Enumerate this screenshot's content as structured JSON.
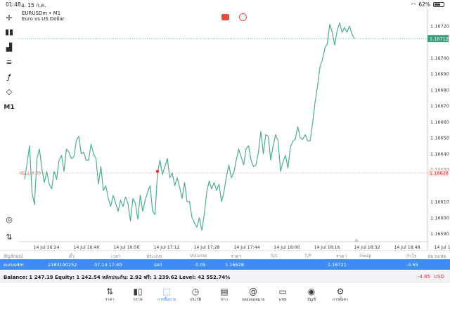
{
  "status_bar": {
    "time": "01:48",
    "date": "อ. 15 ก.ค.",
    "battery": "62%",
    "battery_level": 0.62
  },
  "toolbar": {
    "timeframe": "M1"
  },
  "chart_header": {
    "symbol": "EURUSDm • M1",
    "description": "Euro vs US Dollar"
  },
  "chart_data": {
    "type": "line",
    "y_ticks": [
      "1.16720",
      "1.16700",
      "1.16690",
      "1.16680",
      "1.16670",
      "1.16660",
      "1.16650",
      "1.16640",
      "1.16630",
      "1.16610",
      "1.16600",
      "1.16590"
    ],
    "x_ticks": [
      "14 Jul 16:24",
      "14 Jul 16:40",
      "14 Jul 16:56",
      "14 Jul 17:12",
      "14 Jul 17:28",
      "14 Jul 17:44",
      "14 Jul 18:00",
      "14 Jul 18:16",
      "14 Jul 18:32",
      "14 Jul 18:48",
      "14 Jul 19:04"
    ],
    "ylim": [
      1.16585,
      1.16727
    ],
    "current_price": "1.16712",
    "order_price_label": "1.16628",
    "order_line_label": "SELL 0.05",
    "series_color": "#4fae8a",
    "values": [
      1.16624,
      1.16634,
      1.16645,
      1.16616,
      1.16608,
      1.16637,
      1.16643,
      1.16631,
      1.16622,
      1.16629,
      1.16621,
      1.16618,
      1.16629,
      1.16624,
      1.16636,
      1.16639,
      1.16629,
      1.16643,
      1.16641,
      1.16637,
      1.16638,
      1.16648,
      1.16651,
      1.1664,
      1.16641,
      1.16636,
      1.16636,
      1.16646,
      1.1664,
      1.16637,
      1.16621,
      1.16632,
      1.16617,
      1.1662,
      1.16612,
      1.16607,
      1.16614,
      1.16609,
      1.16604,
      1.16611,
      1.16607,
      1.16613,
      1.16609,
      1.16598,
      1.16612,
      1.16609,
      1.16599,
      1.16614,
      1.16604,
      1.16611,
      1.16616,
      1.1662,
      1.16604,
      1.16602,
      1.16628,
      1.16636,
      1.16627,
      1.16632,
      1.16637,
      1.16625,
      1.16628,
      1.1662,
      1.16625,
      1.16619,
      1.16612,
      1.16622,
      1.1661,
      1.1661,
      1.166,
      1.16597,
      1.16594,
      1.166,
      1.16592,
      1.16602,
      1.16616,
      1.16623,
      1.16618,
      1.16622,
      1.16617,
      1.16621,
      1.1661,
      1.16616,
      1.16626,
      1.16633,
      1.16625,
      1.16628,
      1.16636,
      1.16643,
      1.16638,
      1.16633,
      1.16643,
      1.16645,
      1.16636,
      1.16632,
      1.16633,
      1.16641,
      1.16654,
      1.1664,
      1.16652,
      1.16651,
      1.16636,
      1.16645,
      1.16652,
      1.16648,
      1.16629,
      1.16635,
      1.16639,
      1.16631,
      1.16644,
      1.16648,
      1.16649,
      1.16657,
      1.1665,
      1.16649,
      1.16652,
      1.16648,
      1.16648,
      1.16659,
      1.16672,
      1.16682,
      1.16694,
      1.16699,
      1.16706,
      1.16709,
      1.16721,
      1.16716,
      1.16708,
      1.16717,
      1.16722,
      1.16716,
      1.16719,
      1.16716,
      1.1672,
      1.16715,
      1.16712
    ]
  },
  "orders": {
    "headers": {
      "symbol": "สัญลักษณ์",
      "ticket": "ตั๋ว",
      "time": "เวลา",
      "type": "ประเภท",
      "volume": "Volume",
      "price": "ราคา",
      "sl": "S/L",
      "tp": "T/P",
      "price2": "ราคา",
      "swap": "Swap",
      "profit": "กำไร",
      "comment": "หมายเหตุ"
    },
    "row": {
      "symbol": "eurusdm",
      "ticket": "2183190252",
      "time": "07.14 17:49",
      "type": "sell",
      "volume": "0.05",
      "price": "1.16628",
      "price2": "1.16721",
      "profit": "-4.65"
    }
  },
  "balance": {
    "text": "Balance: 1 247.19 Equity: 1 242.54 หลักประกัน: 2.92 ฟรี: 1 239.62 Level: 42 552.74%",
    "profit": "-4.65",
    "currency": "USD"
  },
  "tabs": [
    {
      "label": "ราคา",
      "icon": "quotes-icon"
    },
    {
      "label": "กราฟ",
      "icon": "candles-icon"
    },
    {
      "label": "การซื้อขาย",
      "icon": "trade-icon",
      "active": true
    },
    {
      "label": "ประวัติ",
      "icon": "history-icon"
    },
    {
      "label": "ข่าว",
      "icon": "news-icon"
    },
    {
      "label": "กล่องจดหมาย",
      "icon": "mailbox-icon"
    },
    {
      "label": "แชท",
      "icon": "chat-icon"
    },
    {
      "label": "บัญชี",
      "icon": "account-icon"
    },
    {
      "label": "การตั้งค่า",
      "icon": "settings-icon"
    }
  ]
}
